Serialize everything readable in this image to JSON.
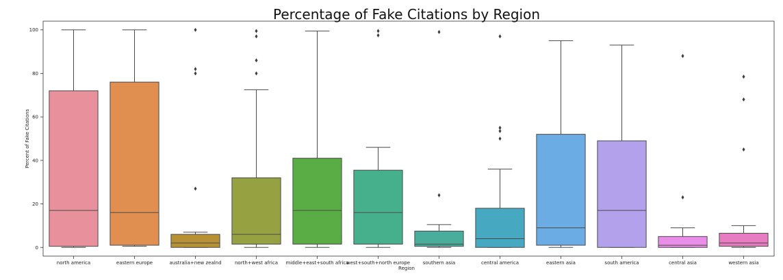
{
  "chart_data": {
    "type": "box",
    "title": "Percentage of Fake Citations by Region",
    "xlabel": "Region",
    "ylabel": "Percent of Fake Citations",
    "ylim": [
      -4,
      104
    ],
    "yticks": [
      0,
      20,
      40,
      60,
      80,
      100
    ],
    "grid": false,
    "categories": [
      "north america",
      "eastern europe",
      "australia+new zealnd",
      "north+west africa",
      "middle+east+south africa",
      "west+south+north europe",
      "southern asia",
      "central america",
      "eastern asia",
      "south america",
      "central asia",
      "western asia"
    ],
    "colors": [
      "#e8919c",
      "#e18e51",
      "#b99135",
      "#96a142",
      "#5aad44",
      "#46b08c",
      "#48ad9b",
      "#47a8c1",
      "#6aace3",
      "#b3a1ec",
      "#ea8de9",
      "#e77cc0"
    ],
    "boxes": [
      {
        "whislo": 0,
        "q1": 0.5,
        "med": 17,
        "q3": 72,
        "whishi": 100,
        "fliers": []
      },
      {
        "whislo": 0.5,
        "q1": 1,
        "med": 16,
        "q3": 76,
        "whishi": 100,
        "fliers": []
      },
      {
        "whislo": 0,
        "q1": 0,
        "med": 2,
        "q3": 6,
        "whishi": 7,
        "fliers": [
          27,
          80,
          82,
          100
        ]
      },
      {
        "whislo": 0,
        "q1": 1.5,
        "med": 6,
        "q3": 32,
        "whishi": 72.5,
        "fliers": [
          80,
          86,
          97,
          99.5
        ]
      },
      {
        "whislo": 0,
        "q1": 1.5,
        "med": 17,
        "q3": 41,
        "whishi": 99.5,
        "fliers": []
      },
      {
        "whislo": 0,
        "q1": 1.5,
        "med": 16,
        "q3": 35.5,
        "whishi": 46,
        "fliers": [
          97.5,
          99.5
        ]
      },
      {
        "whislo": 0,
        "q1": 0.5,
        "med": 1.5,
        "q3": 7.5,
        "whishi": 10.5,
        "fliers": [
          24,
          99
        ]
      },
      {
        "whislo": 0,
        "q1": 0,
        "med": 4,
        "q3": 18,
        "whishi": 36,
        "fliers": [
          50,
          53.5,
          55,
          97
        ]
      },
      {
        "whislo": 0,
        "q1": 1,
        "med": 9,
        "q3": 52,
        "whishi": 95,
        "fliers": []
      },
      {
        "whislo": 0,
        "q1": 0,
        "med": 17,
        "q3": 49,
        "whishi": 93,
        "fliers": []
      },
      {
        "whislo": 0,
        "q1": 0,
        "med": 1,
        "q3": 5,
        "whishi": 9,
        "fliers": [
          23,
          88
        ]
      },
      {
        "whislo": 0,
        "q1": 0.5,
        "med": 2,
        "q3": 6.5,
        "whishi": 10,
        "fliers": [
          45,
          68,
          78.5
        ]
      }
    ]
  }
}
